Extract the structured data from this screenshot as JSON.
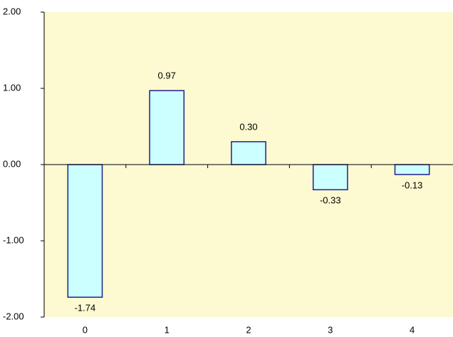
{
  "chart_data": {
    "type": "bar",
    "categories": [
      "0",
      "1",
      "2",
      "3",
      "4"
    ],
    "values": [
      -1.74,
      0.97,
      0.3,
      -0.33,
      -0.13
    ],
    "value_labels": [
      "-1.74",
      "0.97",
      "0.30",
      "-0.33",
      "-0.13"
    ],
    "color": "#ccffff",
    "edge_color": "#1f1f8f",
    "background": "#fdf9d0",
    "ylim": [
      -2,
      2
    ],
    "yticks": [
      {
        "value": -2,
        "label": "-2.00"
      },
      {
        "value": -1,
        "label": "-1.00"
      },
      {
        "value": 0,
        "label": "0.00"
      },
      {
        "value": 1,
        "label": "1.00"
      },
      {
        "value": 2,
        "label": "2.00"
      }
    ]
  }
}
